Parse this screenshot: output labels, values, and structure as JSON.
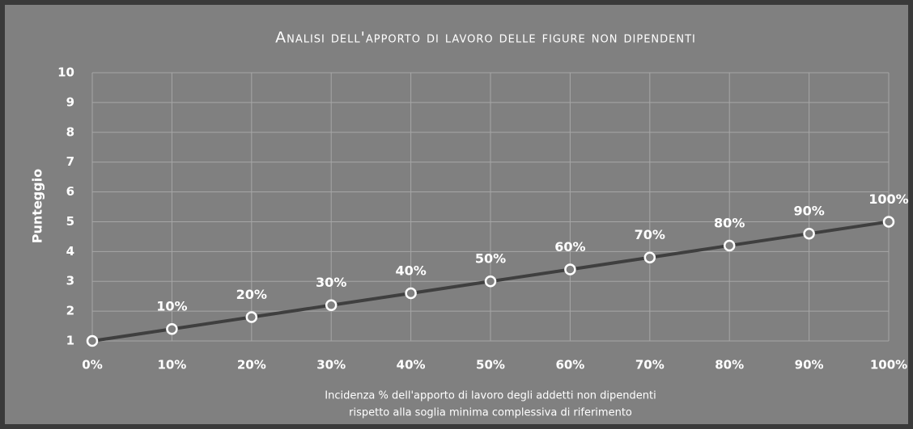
{
  "chart_data": {
    "type": "line",
    "title": "Analisi dell'apporto di lavoro delle figure non dipendenti",
    "ylabel": "Punteggio",
    "xlabel": [
      "Incidenza % dell'apporto di lavoro degli addetti non dipendenti",
      "rispetto alla soglia minima complessiva  di riferimento"
    ],
    "x": [
      0,
      10,
      20,
      30,
      40,
      50,
      60,
      70,
      80,
      90,
      100
    ],
    "series": [
      {
        "name": null,
        "color": "#3f3f3f",
        "values": [
          1,
          1.4,
          1.8,
          2.2,
          2.6,
          3.0,
          3.4,
          3.8,
          4.2,
          4.6,
          5.0
        ],
        "point_labels": [
          null,
          "10%",
          "20%",
          "30%",
          "40%",
          "50%",
          "60%",
          "70%",
          "80%",
          "90%",
          "100%"
        ]
      }
    ],
    "xlim": [
      0,
      100
    ],
    "xticks": [
      {
        "value": 0,
        "label": "0%"
      },
      {
        "value": 10,
        "label": "10%"
      },
      {
        "value": 20,
        "label": "20%"
      },
      {
        "value": 30,
        "label": "30%"
      },
      {
        "value": 40,
        "label": "40%"
      },
      {
        "value": 50,
        "label": "50%"
      },
      {
        "value": 60,
        "label": "60%"
      },
      {
        "value": 70,
        "label": "70%"
      },
      {
        "value": 80,
        "label": "80%"
      },
      {
        "value": 90,
        "label": "90%"
      },
      {
        "value": 100,
        "label": "100%"
      }
    ],
    "ylim": [
      1,
      10
    ],
    "yticks": [
      1,
      2,
      3,
      4,
      5,
      6,
      7,
      8,
      9,
      10
    ],
    "grid": true
  }
}
